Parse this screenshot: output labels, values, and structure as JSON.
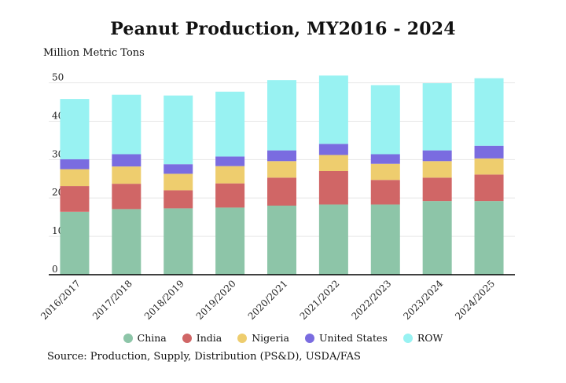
{
  "chart_data": {
    "type": "bar",
    "stacked": true,
    "title": "Peanut Production, MY2016 - 2024",
    "ylabel": "Million Metric Tons",
    "xlabel": "",
    "ylim": [
      0,
      50
    ],
    "yticks": [
      0,
      10,
      20,
      30,
      40,
      50
    ],
    "grid": true,
    "legend_position": "bottom",
    "categories": [
      "2016/2017",
      "2017/2018",
      "2018/2019",
      "2019/2020",
      "2020/2021",
      "2021/2022",
      "2022/2023",
      "2023/2024",
      "2024/2025"
    ],
    "series": [
      {
        "name": "China",
        "color": "#8dc5a8",
        "values": [
          16.4,
          17.1,
          17.3,
          17.5,
          18.0,
          18.3,
          18.3,
          19.2,
          19.2
        ]
      },
      {
        "name": "India",
        "color": "#d06666",
        "values": [
          6.7,
          6.6,
          4.7,
          6.3,
          7.3,
          8.7,
          6.4,
          6.1,
          6.9
        ]
      },
      {
        "name": "Nigeria",
        "color": "#eecd6e",
        "values": [
          4.4,
          4.5,
          4.3,
          4.5,
          4.3,
          4.2,
          4.2,
          4.3,
          4.2
        ]
      },
      {
        "name": "United States",
        "color": "#7a6ce0",
        "values": [
          2.6,
          3.2,
          2.5,
          2.5,
          2.8,
          2.9,
          2.5,
          2.8,
          3.3
        ]
      },
      {
        "name": "ROW",
        "color": "#98f2f2",
        "values": [
          15.7,
          15.5,
          17.9,
          16.9,
          18.3,
          17.8,
          18.0,
          17.5,
          17.6
        ]
      }
    ]
  },
  "source": "Source: Production, Supply, Distribution (PS&D), USDA/FAS"
}
